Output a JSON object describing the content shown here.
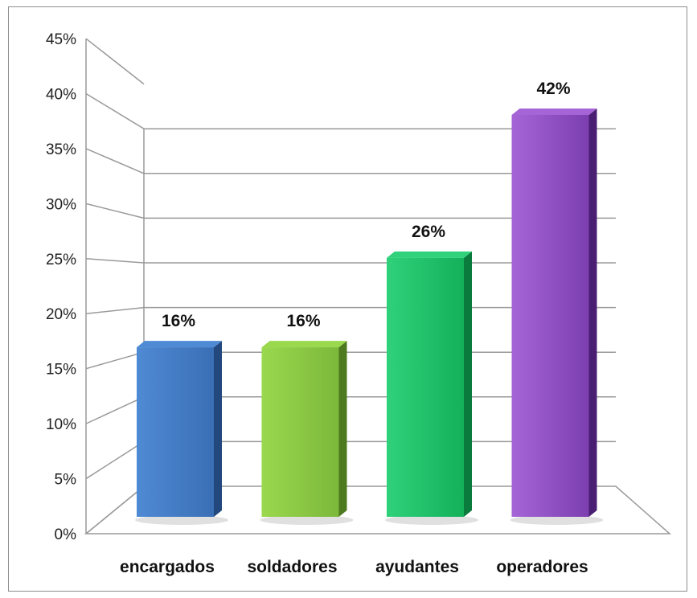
{
  "chart_data": {
    "type": "bar",
    "categories": [
      "encargados",
      "soldadores",
      "ayudantes",
      "operadores"
    ],
    "values": [
      16,
      16,
      26,
      42
    ],
    "data_labels": [
      "16%",
      "16%",
      "26%",
      "42%"
    ],
    "y_ticks": [
      "0%",
      "5%",
      "10%",
      "15%",
      "20%",
      "25%",
      "30%",
      "35%",
      "40%",
      "45%"
    ],
    "ylim": [
      0,
      45
    ],
    "ystep": 5,
    "grid": true,
    "legend": "none",
    "style": "3d",
    "colors": [
      {
        "light": "#4f8ad4",
        "mid": "#3a6fb5",
        "dark": "#22487d"
      },
      {
        "light": "#9ad84e",
        "mid": "#7cb83a",
        "dark": "#4d7a1f"
      },
      {
        "light": "#2fd17a",
        "mid": "#14b05a",
        "dark": "#0a7a3d"
      },
      {
        "light": "#a565d6",
        "mid": "#7c3fb0",
        "dark": "#4a1f73"
      }
    ]
  }
}
